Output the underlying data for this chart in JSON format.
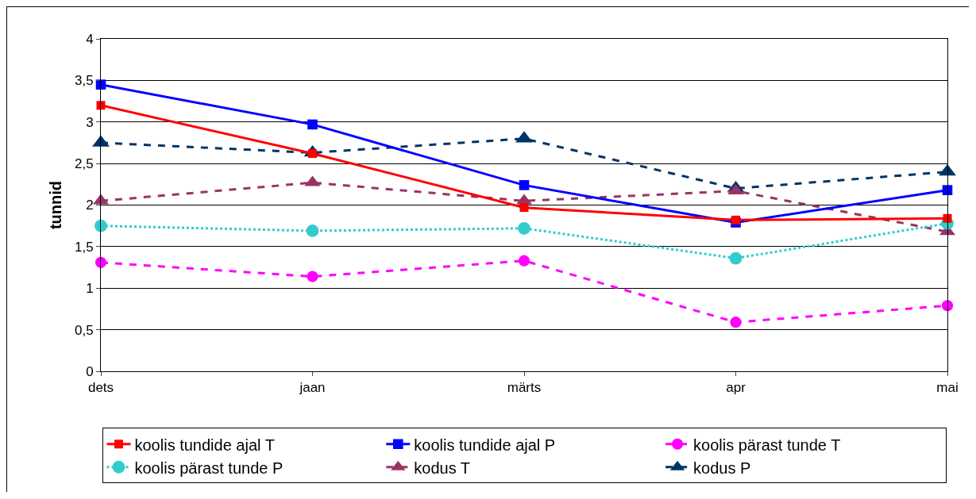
{
  "chart_data": {
    "type": "line",
    "ylabel": "tunnid",
    "categories": [
      "dets",
      "jaan",
      "märts",
      "apr",
      "mai"
    ],
    "ylim": [
      0,
      4
    ],
    "yticks": [
      0,
      {
        "value": 0.5,
        "label": "0,5"
      },
      1,
      {
        "value": 1.5,
        "label": "1,5"
      },
      2,
      {
        "value": 2.5,
        "label": "2,5"
      },
      3,
      {
        "value": 3.5,
        "label": "3,5"
      },
      4
    ],
    "grid": "y",
    "legend": "bottom",
    "series": [
      {
        "name": "koolis tundide ajal T",
        "color": "#ff0000",
        "marker": "square",
        "line_style": "solid",
        "values": [
          3.2,
          2.62,
          1.97,
          1.82,
          1.84
        ]
      },
      {
        "name": "koolis tundide ajal P",
        "color": "#0000ff",
        "marker": "square",
        "line_style": "solid",
        "values": [
          3.45,
          2.97,
          2.24,
          1.79,
          2.18
        ]
      },
      {
        "name": "koolis pärast tunde T",
        "color": "#ff00ff",
        "marker": "circle",
        "line_style": "dashed",
        "values": [
          1.31,
          1.14,
          1.33,
          0.59,
          0.79
        ]
      },
      {
        "name": "koolis pärast tunde P",
        "color": "#33cccc",
        "marker": "circle",
        "line_style": "dotted",
        "values": [
          1.75,
          1.69,
          1.72,
          1.36,
          1.78
        ]
      },
      {
        "name": "kodus T",
        "color": "#993366",
        "marker": "triangle",
        "line_style": "dashed",
        "values": [
          2.05,
          2.27,
          2.05,
          2.17,
          1.68
        ]
      },
      {
        "name": "kodus P",
        "color": "#003366",
        "marker": "triangle",
        "line_style": "dashed",
        "values": [
          2.75,
          2.63,
          2.8,
          2.2,
          2.4
        ]
      }
    ]
  }
}
